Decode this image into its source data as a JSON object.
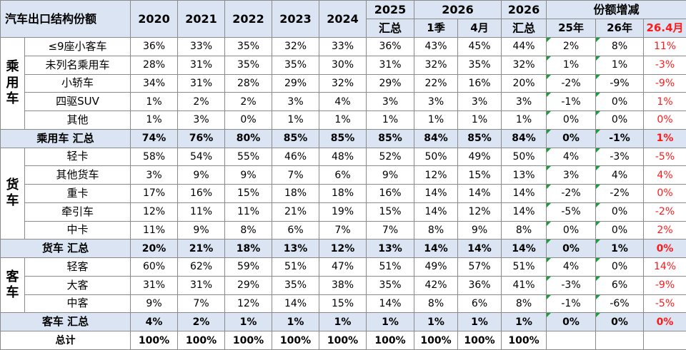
{
  "header": {
    "title": "汽车出口结构份额",
    "years": [
      "2020",
      "2021",
      "2022",
      "2023",
      "2024"
    ],
    "y2025_top": "2025",
    "y2025_bottom": "汇总",
    "y2026_top": "2026",
    "y2026_q1": "1季",
    "y2026_apr": "4月",
    "y2026s_top": "2026",
    "y2026s_bottom": "汇总",
    "share_change": "份额增减",
    "chg_25": "25年",
    "chg_26": "26年",
    "chg_264": "26.4月"
  },
  "groups": [
    {
      "category": "乘\n用\n车",
      "rows": [
        {
          "label": "≤9座小客车",
          "values": [
            "36%",
            "33%",
            "35%",
            "32%",
            "33%",
            "36%",
            "43%",
            "45%",
            "44%",
            "2%",
            "8%",
            "11%"
          ]
        },
        {
          "label": "未列名乘用车",
          "values": [
            "28%",
            "31%",
            "35%",
            "35%",
            "30%",
            "31%",
            "32%",
            "35%",
            "32%",
            "1%",
            "1%",
            "-3%"
          ]
        },
        {
          "label": "小轿车",
          "values": [
            "34%",
            "31%",
            "28%",
            "29%",
            "32%",
            "29%",
            "22%",
            "16%",
            "20%",
            "-2%",
            "-9%",
            "-9%"
          ]
        },
        {
          "label": "四驱SUV",
          "values": [
            "1%",
            "2%",
            "2%",
            "3%",
            "4%",
            "3%",
            "3%",
            "3%",
            "3%",
            "-1%",
            "0%",
            "1%"
          ]
        },
        {
          "label": "其他",
          "values": [
            "1%",
            "3%",
            "0%",
            "1%",
            "1%",
            "1%",
            "1%",
            "1%",
            "1%",
            "0%",
            "0%",
            "0%"
          ]
        }
      ],
      "subtotal": {
        "label": "乘用车 汇总",
        "values": [
          "74%",
          "76%",
          "80%",
          "85%",
          "85%",
          "85%",
          "84%",
          "85%",
          "84%",
          "0%",
          "-1%",
          "1%"
        ]
      }
    },
    {
      "category": "货\n车",
      "rows": [
        {
          "label": "轻卡",
          "values": [
            "58%",
            "54%",
            "55%",
            "46%",
            "48%",
            "52%",
            "50%",
            "49%",
            "50%",
            "4%",
            "-3%",
            "-5%"
          ]
        },
        {
          "label": "其他货车",
          "values": [
            "3%",
            "9%",
            "9%",
            "7%",
            "6%",
            "9%",
            "12%",
            "15%",
            "13%",
            "3%",
            "4%",
            "4%"
          ]
        },
        {
          "label": "重卡",
          "values": [
            "17%",
            "16%",
            "15%",
            "18%",
            "18%",
            "16%",
            "14%",
            "14%",
            "14%",
            "-2%",
            "-2%",
            "0%"
          ]
        },
        {
          "label": "牵引车",
          "values": [
            "12%",
            "11%",
            "11%",
            "21%",
            "19%",
            "15%",
            "14%",
            "12%",
            "14%",
            "-5%",
            "0%",
            "-2%"
          ]
        },
        {
          "label": "中卡",
          "values": [
            "11%",
            "9%",
            "8%",
            "6%",
            "7%",
            "7%",
            "8%",
            "9%",
            "8%",
            "0%",
            "0%",
            "2%"
          ]
        }
      ],
      "subtotal": {
        "label": "货车 汇总",
        "values": [
          "20%",
          "21%",
          "18%",
          "13%",
          "12%",
          "13%",
          "14%",
          "14%",
          "14%",
          "0%",
          "1%",
          "0%"
        ]
      }
    },
    {
      "category": "客\n车",
      "rows": [
        {
          "label": "轻客",
          "values": [
            "60%",
            "62%",
            "59%",
            "51%",
            "47%",
            "51%",
            "49%",
            "57%",
            "51%",
            "4%",
            "0%",
            "14%"
          ]
        },
        {
          "label": "大客",
          "values": [
            "31%",
            "31%",
            "29%",
            "35%",
            "38%",
            "35%",
            "42%",
            "36%",
            "41%",
            "-3%",
            "6%",
            "-9%"
          ]
        },
        {
          "label": "中客",
          "values": [
            "9%",
            "7%",
            "12%",
            "14%",
            "15%",
            "14%",
            "8%",
            "6%",
            "8%",
            "-1%",
            "-6%",
            "-5%"
          ]
        }
      ],
      "subtotal": {
        "label": "客车 汇总",
        "values": [
          "4%",
          "2%",
          "1%",
          "1%",
          "1%",
          "1%",
          "1%",
          "1%",
          "1%",
          "0%",
          "0%",
          "0%"
        ]
      }
    }
  ],
  "total": {
    "label": "总计",
    "values": [
      "100%",
      "100%",
      "100%",
      "100%",
      "100%",
      "100%",
      "100%",
      "100%",
      "100%",
      "",
      "",
      ""
    ]
  },
  "colors": {
    "header_bg": "#dae4f2",
    "subtotal_bg": "#dae4f2",
    "highlight_red": "#ff1a1a",
    "flag_green": "#1a9e3a",
    "grid": "#8a8a8a"
  }
}
